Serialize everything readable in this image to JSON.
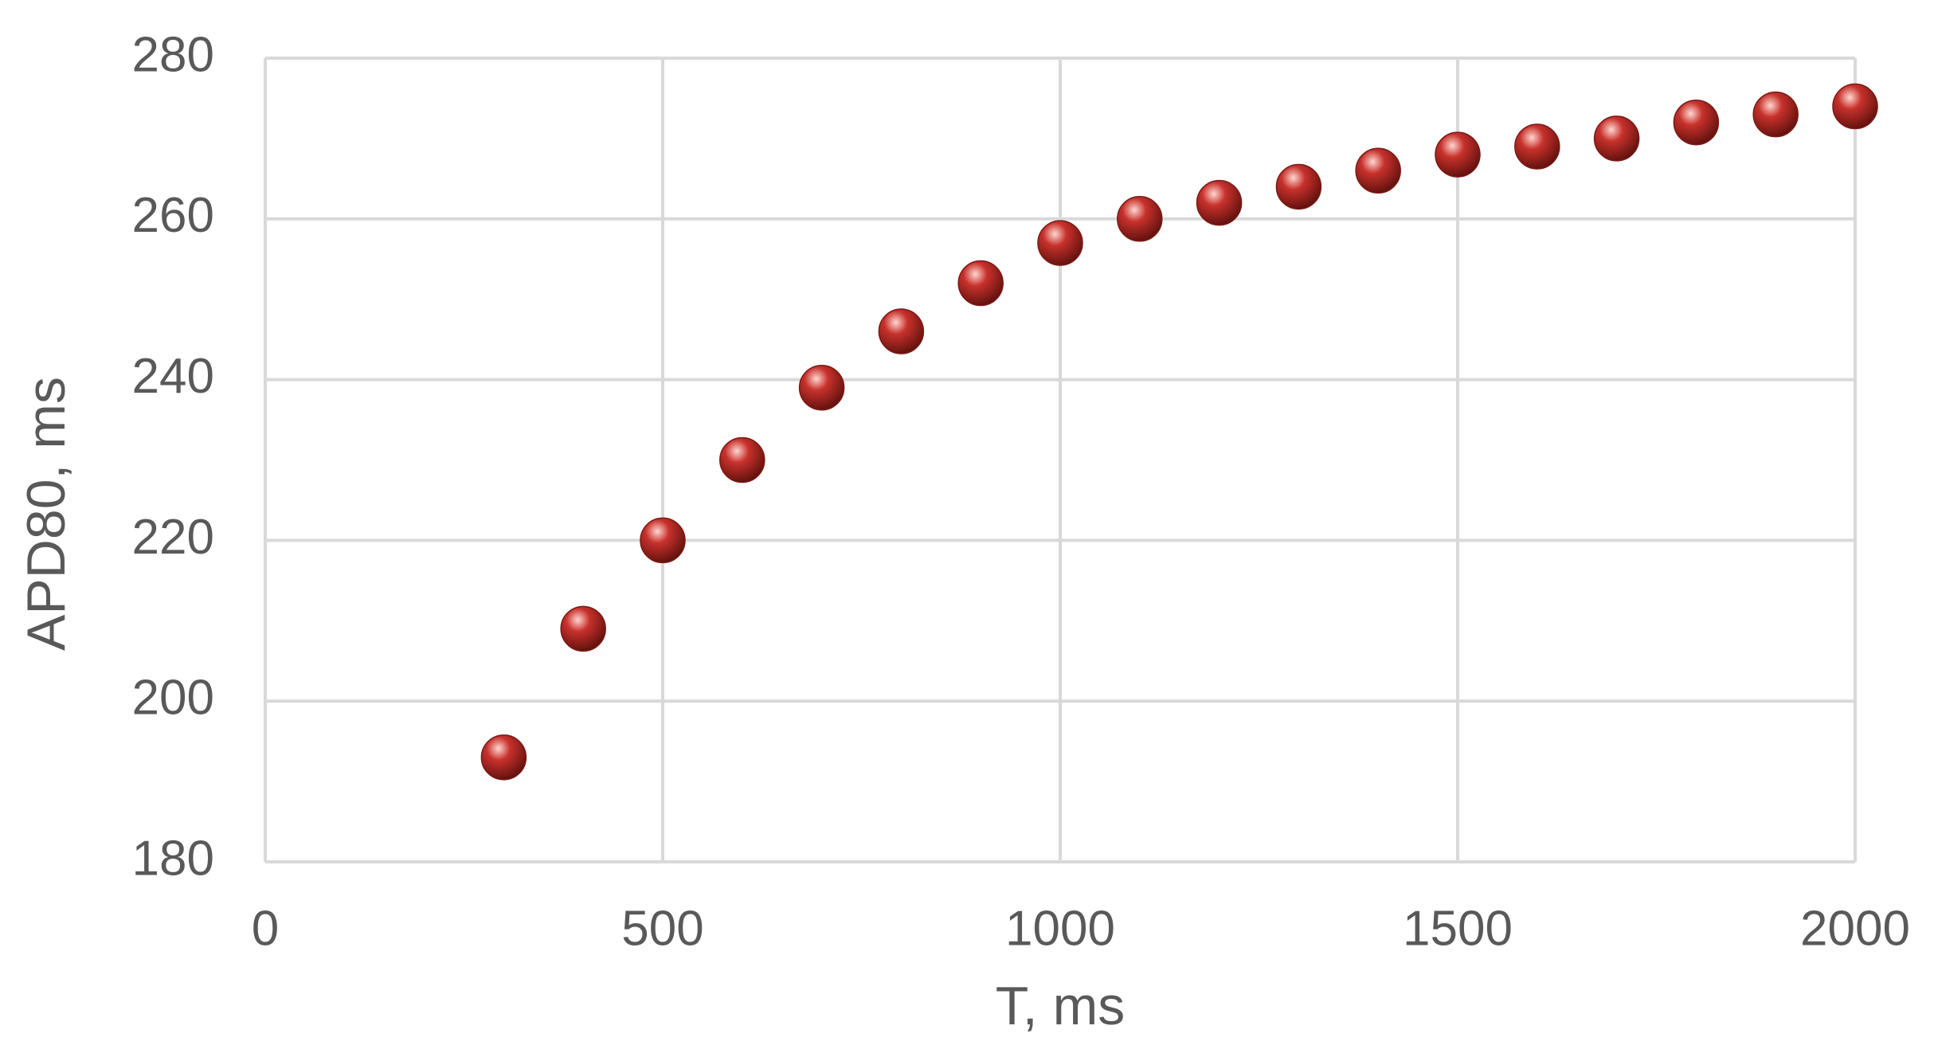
{
  "chart_data": {
    "type": "scatter",
    "x_label": "T, ms",
    "y_label": "APD80, ms",
    "series": [
      {
        "color": "#c8312c",
        "x": [
          300,
          400,
          500,
          600,
          700,
          800,
          900,
          1000,
          1100,
          1200,
          1300,
          1400,
          1500,
          1600,
          1700,
          1800,
          1900,
          2000
        ],
        "values": [
          193,
          209,
          220,
          230,
          239,
          246,
          252,
          257,
          260,
          262,
          264,
          266,
          268,
          269,
          270,
          272,
          273,
          274
        ]
      }
    ],
    "xlim": [
      0,
      2000
    ],
    "xticks": [
      0,
      500,
      1000,
      1500,
      2000
    ],
    "ylim": [
      180,
      280
    ],
    "yticks": [
      180,
      200,
      220,
      240,
      260,
      280
    ],
    "grid": true
  }
}
